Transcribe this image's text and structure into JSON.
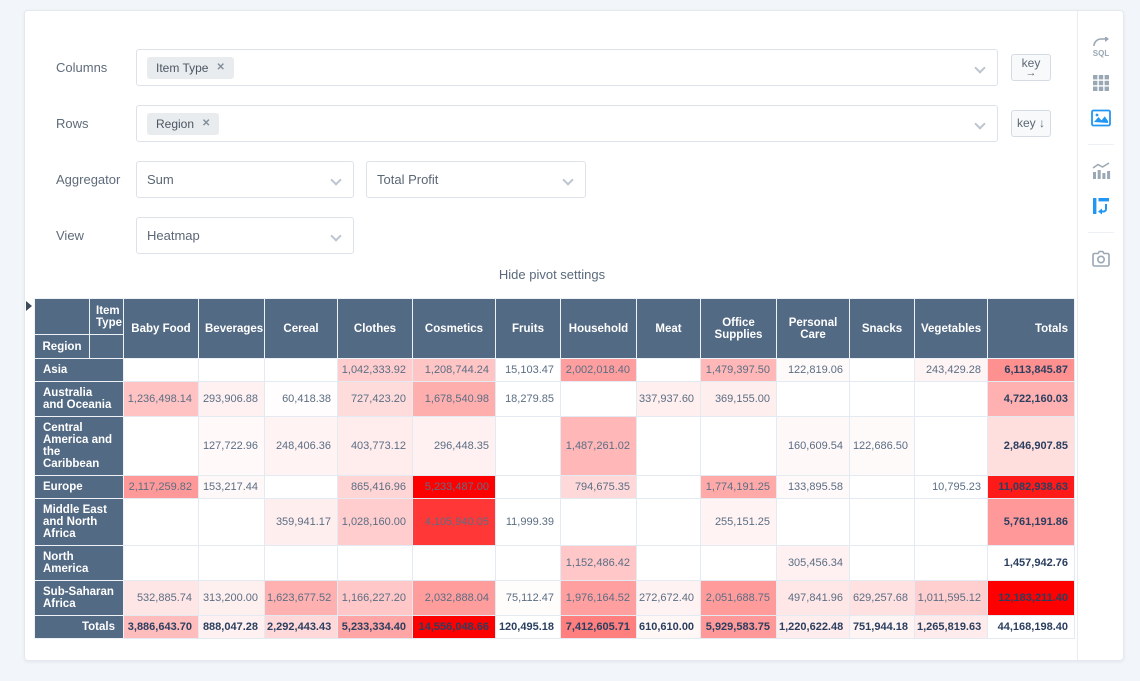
{
  "controls": {
    "columns": {
      "label": "Columns",
      "tags": [
        "Item Type"
      ],
      "remove_icon": "✕",
      "key_button": "key",
      "key_arrow": "→"
    },
    "rows": {
      "label": "Rows",
      "tags": [
        "Region"
      ],
      "remove_icon": "✕",
      "key_button": "key ↓"
    },
    "aggregator": {
      "label": "Aggregator",
      "value": "Sum",
      "field": "Total Profit"
    },
    "view": {
      "label": "View",
      "value": "Heatmap"
    },
    "toggle_settings": "Hide pivot settings"
  },
  "toolbar": {
    "icons": [
      {
        "name": "sql-source-icon",
        "active": false
      },
      {
        "name": "table-grid-icon",
        "active": false
      },
      {
        "name": "visualization-image-icon",
        "active": true
      },
      {
        "name": "bar-chart-icon",
        "active": false
      },
      {
        "name": "pivot-icon",
        "active": true
      },
      {
        "name": "snapshot-camera-icon",
        "active": false
      }
    ]
  },
  "pivot_table": {
    "type": "heatmap",
    "col_attr": "Item Type",
    "row_attr": "Region",
    "totals_label": "Totals",
    "columns": [
      "Baby Food",
      "Beverages",
      "Cereal",
      "Clothes",
      "Cosmetics",
      "Fruits",
      "Household",
      "Meat",
      "Office Supplies",
      "Personal Care",
      "Snacks",
      "Vegetables"
    ],
    "rows": [
      {
        "label": "Asia",
        "values": [
          null,
          null,
          null,
          "1,042,333.92",
          "1,208,744.24",
          "15,103.47",
          "2,002,018.40",
          null,
          "1,479,397.50",
          "122,819.06",
          null,
          "243,429.28"
        ],
        "total": "6,113,845.87"
      },
      {
        "label": "Australia and Oceania",
        "values": [
          "1,236,498.14",
          "293,906.88",
          "60,418.38",
          "727,423.20",
          "1,678,540.98",
          "18,279.85",
          null,
          "337,937.60",
          "369,155.00",
          null,
          null,
          null
        ],
        "total": "4,722,160.03"
      },
      {
        "label": "Central America and the Caribbean",
        "values": [
          null,
          "127,722.96",
          "248,406.36",
          "403,773.12",
          "296,448.35",
          null,
          "1,487,261.02",
          null,
          null,
          "160,609.54",
          "122,686.50",
          null
        ],
        "total": "2,846,907.85"
      },
      {
        "label": "Europe",
        "values": [
          "2,117,259.82",
          "153,217.44",
          null,
          "865,416.96",
          "5,233,487.00",
          null,
          "794,675.35",
          null,
          "1,774,191.25",
          "133,895.58",
          null,
          "10,795.23"
        ],
        "total": "11,082,938.63"
      },
      {
        "label": "Middle East and North Africa",
        "values": [
          null,
          null,
          "359,941.17",
          "1,028,160.00",
          "4,105,940.05",
          "11,999.39",
          null,
          null,
          "255,151.25",
          null,
          null,
          null
        ],
        "total": "5,761,191.86"
      },
      {
        "label": "North America",
        "values": [
          null,
          null,
          null,
          null,
          null,
          null,
          "1,152,486.42",
          null,
          null,
          "305,456.34",
          null,
          null
        ],
        "total": "1,457,942.76"
      },
      {
        "label": "Sub-Saharan Africa",
        "values": [
          "532,885.74",
          "313,200.00",
          "1,623,677.52",
          "1,166,227.20",
          "2,032,888.04",
          "75,112.47",
          "1,976,164.52",
          "272,672.40",
          "2,051,688.75",
          "497,841.96",
          "629,257.68",
          "1,011,595.12"
        ],
        "total": "12,183,211.40"
      }
    ],
    "totals_row": {
      "label": "Totals",
      "values": [
        "3,886,643.70",
        "888,047.28",
        "2,292,443.43",
        "5,233,334.40",
        "14,556,048.66",
        "120,495.18",
        "7,412,605.71",
        "610,610.00",
        "5,929,583.75",
        "1,220,622.48",
        "751,944.18",
        "1,265,819.63"
      ],
      "grand_total": "44,168,198.40"
    },
    "colors": {
      "header_bg": "#536a84",
      "heatmap_max": "#ff0000",
      "cell_text": "#5b6e84",
      "total_text": "#2a3f5f"
    }
  }
}
